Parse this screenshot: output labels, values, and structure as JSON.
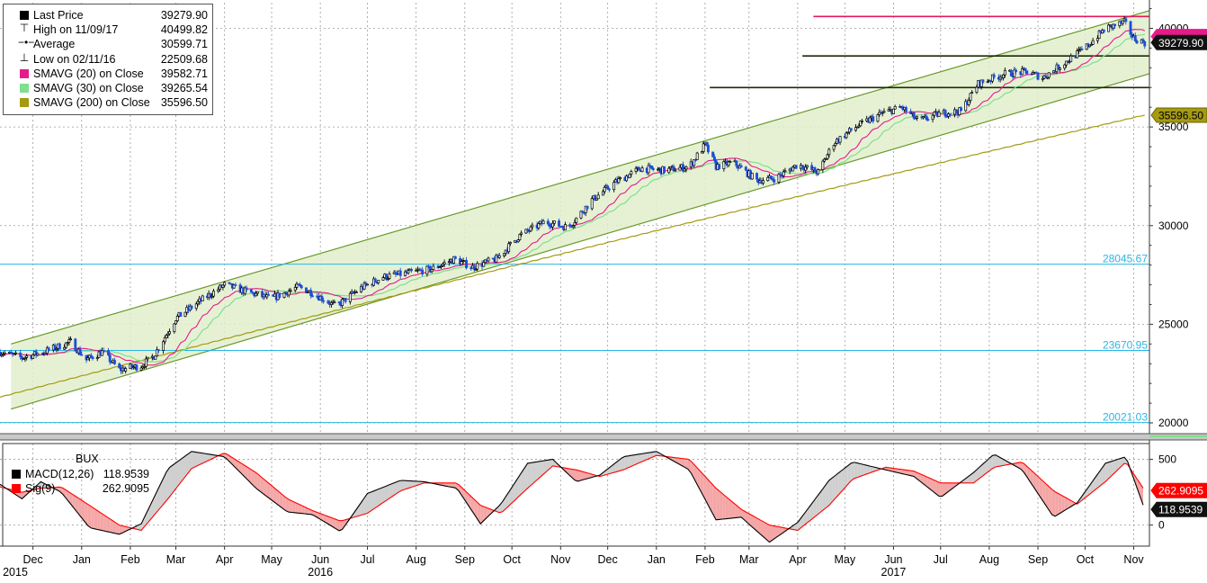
{
  "chart_data": [
    {
      "type": "candlestick",
      "title": "",
      "x_ticks": [
        {
          "label": "Dec",
          "date": "2015-12-15"
        },
        {
          "label": "Jan",
          "date": "2016-01-15"
        },
        {
          "label": "Feb",
          "date": "2016-02-15"
        },
        {
          "label": "Mar",
          "date": "2016-03-15"
        },
        {
          "label": "Apr",
          "date": "2016-04-15"
        },
        {
          "label": "May",
          "date": "2016-05-15"
        },
        {
          "label": "Jun",
          "date": "2016-06-15"
        },
        {
          "label": "Jul",
          "date": "2016-07-15"
        },
        {
          "label": "Aug",
          "date": "2016-08-15"
        },
        {
          "label": "Sep",
          "date": "2016-09-15"
        },
        {
          "label": "Oct",
          "date": "2016-10-15"
        },
        {
          "label": "Nov",
          "date": "2016-11-15"
        },
        {
          "label": "Dec",
          "date": "2016-12-15"
        },
        {
          "label": "Jan",
          "date": "2017-01-15"
        },
        {
          "label": "Feb",
          "date": "2017-02-15"
        },
        {
          "label": "Mar",
          "date": "2017-03-15"
        },
        {
          "label": "Apr",
          "date": "2017-04-15"
        },
        {
          "label": "May",
          "date": "2017-05-15"
        },
        {
          "label": "Jun",
          "date": "2017-06-15"
        },
        {
          "label": "Jul",
          "date": "2017-07-15"
        },
        {
          "label": "Aug",
          "date": "2017-08-15"
        },
        {
          "label": "Sep",
          "date": "2017-09-15"
        },
        {
          "label": "Oct",
          "date": "2017-10-15"
        },
        {
          "label": "Nov",
          "date": "2017-11-15"
        }
      ],
      "year_labels": [
        {
          "label": "2015",
          "date": "2015-12-01"
        },
        {
          "label": "2016",
          "date": "2016-06-15"
        },
        {
          "label": "2017",
          "date": "2017-06-15"
        }
      ],
      "xlim": [
        "2015-11-24",
        "2017-11-25"
      ],
      "ylim": [
        19500,
        41300
      ],
      "y_ticks": [
        20000,
        25000,
        30000,
        35000,
        40000
      ],
      "legend": [
        {
          "glyph": "square",
          "label": "Last Price",
          "value": "39279.90",
          "color": "#000000"
        },
        {
          "glyph": "high",
          "label": "High on 11/09/17",
          "value": "40499.82",
          "color": "#000000"
        },
        {
          "glyph": "avg",
          "label": "Average",
          "value": "30599.71",
          "color": "#000000"
        },
        {
          "glyph": "low",
          "label": "Low on 02/11/16",
          "value": "22509.68",
          "color": "#000000"
        },
        {
          "glyph": "square",
          "label": "SMAVG (20)  on Close",
          "value": "39582.71",
          "color": "#e8198b"
        },
        {
          "glyph": "square",
          "label": "SMAVG (30)  on Close",
          "value": "39265.54",
          "color": "#7ee08e"
        },
        {
          "glyph": "square",
          "label": "SMAVG (200)  on Close",
          "value": "35596.50",
          "color": "#a59a12"
        }
      ],
      "last_price": {
        "value": 39279.9,
        "label": "39279.90"
      },
      "last_sma20": {
        "value": 39582.71
      },
      "last_sma200": {
        "value": 35596.5,
        "label": "35596.50"
      },
      "horizontal_levels": [
        {
          "value": 28045.67,
          "label": "28045.67",
          "color": "#29b6e6"
        },
        {
          "value": 23670.95,
          "label": "23670.95",
          "color": "#29b6e6"
        },
        {
          "value": 20021.03,
          "label": "20021.03",
          "color": "#29b6e6"
        }
      ],
      "resistance_lines": [
        {
          "value": 40600,
          "from": "2017-04-25",
          "to": "2017-11-25",
          "color": "#e8195a"
        },
        {
          "value": 38600,
          "from": "2017-04-18",
          "to": "2017-11-25",
          "color": "#1c2a05"
        },
        {
          "value": 37000,
          "from": "2017-02-18",
          "to": "2017-11-25",
          "color": "#1c2a05"
        }
      ],
      "trend_channel": {
        "upper": [
          {
            "date": "2015-12-01",
            "value": 24000
          },
          {
            "date": "2017-11-25",
            "value": 40900
          }
        ],
        "lower": [
          {
            "date": "2015-12-01",
            "value": 20700
          },
          {
            "date": "2017-11-25",
            "value": 37700
          }
        ],
        "color": "#6a9a2a",
        "fill": "#e2efcc"
      },
      "series_keypoints": [
        {
          "date": "2015-11-24",
          "value": 23600
        },
        {
          "date": "2015-12-08",
          "value": 23300
        },
        {
          "date": "2015-12-22",
          "value": 23600
        },
        {
          "date": "2016-01-08",
          "value": 24100
        },
        {
          "date": "2016-01-18",
          "value": 23200
        },
        {
          "date": "2016-01-28",
          "value": 23600
        },
        {
          "date": "2016-02-08",
          "value": 22700
        },
        {
          "date": "2016-02-22",
          "value": 22900
        },
        {
          "date": "2016-03-01",
          "value": 23400
        },
        {
          "date": "2016-03-15",
          "value": 25300
        },
        {
          "date": "2016-03-31",
          "value": 26200
        },
        {
          "date": "2016-04-15",
          "value": 27000
        },
        {
          "date": "2016-05-01",
          "value": 26600
        },
        {
          "date": "2016-05-15",
          "value": 26300
        },
        {
          "date": "2016-06-01",
          "value": 26900
        },
        {
          "date": "2016-06-10",
          "value": 26600
        },
        {
          "date": "2016-06-25",
          "value": 25900
        },
        {
          "date": "2016-07-10",
          "value": 26800
        },
        {
          "date": "2016-07-25",
          "value": 27400
        },
        {
          "date": "2016-08-10",
          "value": 27600
        },
        {
          "date": "2016-08-25",
          "value": 27800
        },
        {
          "date": "2016-09-08",
          "value": 28300
        },
        {
          "date": "2016-09-20",
          "value": 27900
        },
        {
          "date": "2016-10-05",
          "value": 28300
        },
        {
          "date": "2016-10-20",
          "value": 29500
        },
        {
          "date": "2016-11-05",
          "value": 30200
        },
        {
          "date": "2016-11-20",
          "value": 29900
        },
        {
          "date": "2016-12-05",
          "value": 31300
        },
        {
          "date": "2016-12-20",
          "value": 32200
        },
        {
          "date": "2017-01-05",
          "value": 32900
        },
        {
          "date": "2017-01-20",
          "value": 32800
        },
        {
          "date": "2017-02-05",
          "value": 33000
        },
        {
          "date": "2017-02-15",
          "value": 34100
        },
        {
          "date": "2017-02-22",
          "value": 33000
        },
        {
          "date": "2017-03-05",
          "value": 33200
        },
        {
          "date": "2017-03-20",
          "value": 32300
        },
        {
          "date": "2017-04-01",
          "value": 32400
        },
        {
          "date": "2017-04-15",
          "value": 33100
        },
        {
          "date": "2017-04-28",
          "value": 32700
        },
        {
          "date": "2017-05-08",
          "value": 34200
        },
        {
          "date": "2017-05-22",
          "value": 35000
        },
        {
          "date": "2017-06-08",
          "value": 35700
        },
        {
          "date": "2017-06-20",
          "value": 36000
        },
        {
          "date": "2017-07-01",
          "value": 35300
        },
        {
          "date": "2017-07-15",
          "value": 35700
        },
        {
          "date": "2017-07-28",
          "value": 35800
        },
        {
          "date": "2017-08-08",
          "value": 37200
        },
        {
          "date": "2017-08-25",
          "value": 37700
        },
        {
          "date": "2017-09-08",
          "value": 37800
        },
        {
          "date": "2017-09-18",
          "value": 37500
        },
        {
          "date": "2017-10-01",
          "value": 38200
        },
        {
          "date": "2017-10-15",
          "value": 39000
        },
        {
          "date": "2017-10-28",
          "value": 40000
        },
        {
          "date": "2017-11-09",
          "value": 40300
        },
        {
          "date": "2017-11-15",
          "value": 39500
        },
        {
          "date": "2017-11-22",
          "value": 39280
        }
      ]
    },
    {
      "type": "line",
      "title": "BUX",
      "xlim": [
        "2015-11-24",
        "2017-11-25"
      ],
      "ylim": [
        -160,
        620
      ],
      "y_ticks": [
        0,
        500
      ],
      "legend": [
        {
          "label": "MACD(12,26)",
          "value": "118.9539",
          "color": "#000000"
        },
        {
          "label": "Sig(9)",
          "value": "262.9095",
          "color": "#ff0000"
        }
      ],
      "last_macd": {
        "value": 118.9539,
        "label": "118.9539"
      },
      "last_signal": {
        "value": 262.9095,
        "label": "262.9095"
      },
      "series": [
        {
          "name": "MACD(12,26)",
          "color": "#000000",
          "points": [
            {
              "date": "2015-11-24",
              "value": 310
            },
            {
              "date": "2015-12-08",
              "value": 200
            },
            {
              "date": "2015-12-20",
              "value": 330
            },
            {
              "date": "2016-01-02",
              "value": 250
            },
            {
              "date": "2016-01-20",
              "value": -20
            },
            {
              "date": "2016-02-08",
              "value": -70
            },
            {
              "date": "2016-02-22",
              "value": 10
            },
            {
              "date": "2016-03-10",
              "value": 430
            },
            {
              "date": "2016-03-25",
              "value": 560
            },
            {
              "date": "2016-04-15",
              "value": 520
            },
            {
              "date": "2016-05-05",
              "value": 280
            },
            {
              "date": "2016-05-25",
              "value": 100
            },
            {
              "date": "2016-06-10",
              "value": 80
            },
            {
              "date": "2016-06-28",
              "value": -50
            },
            {
              "date": "2016-07-15",
              "value": 240
            },
            {
              "date": "2016-08-05",
              "value": 340
            },
            {
              "date": "2016-08-20",
              "value": 330
            },
            {
              "date": "2016-09-10",
              "value": 280
            },
            {
              "date": "2016-09-25",
              "value": 10
            },
            {
              "date": "2016-10-08",
              "value": 160
            },
            {
              "date": "2016-10-25",
              "value": 470
            },
            {
              "date": "2016-11-10",
              "value": 500
            },
            {
              "date": "2016-11-25",
              "value": 330
            },
            {
              "date": "2016-12-10",
              "value": 380
            },
            {
              "date": "2016-12-25",
              "value": 520
            },
            {
              "date": "2017-01-15",
              "value": 560
            },
            {
              "date": "2017-02-05",
              "value": 420
            },
            {
              "date": "2017-02-22",
              "value": 40
            },
            {
              "date": "2017-03-10",
              "value": 60
            },
            {
              "date": "2017-03-28",
              "value": -130
            },
            {
              "date": "2017-04-15",
              "value": 20
            },
            {
              "date": "2017-05-05",
              "value": 340
            },
            {
              "date": "2017-05-20",
              "value": 480
            },
            {
              "date": "2017-06-10",
              "value": 420
            },
            {
              "date": "2017-06-28",
              "value": 370
            },
            {
              "date": "2017-07-15",
              "value": 210
            },
            {
              "date": "2017-08-05",
              "value": 400
            },
            {
              "date": "2017-08-18",
              "value": 540
            },
            {
              "date": "2017-09-05",
              "value": 420
            },
            {
              "date": "2017-09-25",
              "value": 60
            },
            {
              "date": "2017-10-10",
              "value": 170
            },
            {
              "date": "2017-10-28",
              "value": 470
            },
            {
              "date": "2017-11-10",
              "value": 520
            },
            {
              "date": "2017-11-22",
              "value": 119
            }
          ]
        },
        {
          "name": "Sig(9)",
          "color": "#ff0000",
          "points": [
            {
              "date": "2015-11-24",
              "value": 290
            },
            {
              "date": "2015-12-08",
              "value": 250
            },
            {
              "date": "2015-12-20",
              "value": 280
            },
            {
              "date": "2016-01-02",
              "value": 290
            },
            {
              "date": "2016-01-20",
              "value": 150
            },
            {
              "date": "2016-02-08",
              "value": 0
            },
            {
              "date": "2016-02-22",
              "value": -40
            },
            {
              "date": "2016-03-10",
              "value": 200
            },
            {
              "date": "2016-03-25",
              "value": 430
            },
            {
              "date": "2016-04-15",
              "value": 550
            },
            {
              "date": "2016-05-05",
              "value": 400
            },
            {
              "date": "2016-05-25",
              "value": 200
            },
            {
              "date": "2016-06-10",
              "value": 110
            },
            {
              "date": "2016-06-28",
              "value": 30
            },
            {
              "date": "2016-07-15",
              "value": 90
            },
            {
              "date": "2016-08-05",
              "value": 260
            },
            {
              "date": "2016-08-20",
              "value": 320
            },
            {
              "date": "2016-09-10",
              "value": 320
            },
            {
              "date": "2016-09-25",
              "value": 150
            },
            {
              "date": "2016-10-08",
              "value": 90
            },
            {
              "date": "2016-10-25",
              "value": 280
            },
            {
              "date": "2016-11-10",
              "value": 450
            },
            {
              "date": "2016-11-25",
              "value": 420
            },
            {
              "date": "2016-12-10",
              "value": 370
            },
            {
              "date": "2016-12-25",
              "value": 420
            },
            {
              "date": "2017-01-15",
              "value": 530
            },
            {
              "date": "2017-02-05",
              "value": 500
            },
            {
              "date": "2017-02-22",
              "value": 280
            },
            {
              "date": "2017-03-10",
              "value": 120
            },
            {
              "date": "2017-03-28",
              "value": 0
            },
            {
              "date": "2017-04-15",
              "value": -40
            },
            {
              "date": "2017-05-05",
              "value": 150
            },
            {
              "date": "2017-05-20",
              "value": 350
            },
            {
              "date": "2017-06-10",
              "value": 440
            },
            {
              "date": "2017-06-28",
              "value": 410
            },
            {
              "date": "2017-07-15",
              "value": 320
            },
            {
              "date": "2017-08-05",
              "value": 320
            },
            {
              "date": "2017-08-18",
              "value": 440
            },
            {
              "date": "2017-09-05",
              "value": 480
            },
            {
              "date": "2017-09-25",
              "value": 260
            },
            {
              "date": "2017-10-10",
              "value": 160
            },
            {
              "date": "2017-10-28",
              "value": 330
            },
            {
              "date": "2017-11-10",
              "value": 480
            },
            {
              "date": "2017-11-22",
              "value": 263
            }
          ]
        }
      ]
    }
  ]
}
